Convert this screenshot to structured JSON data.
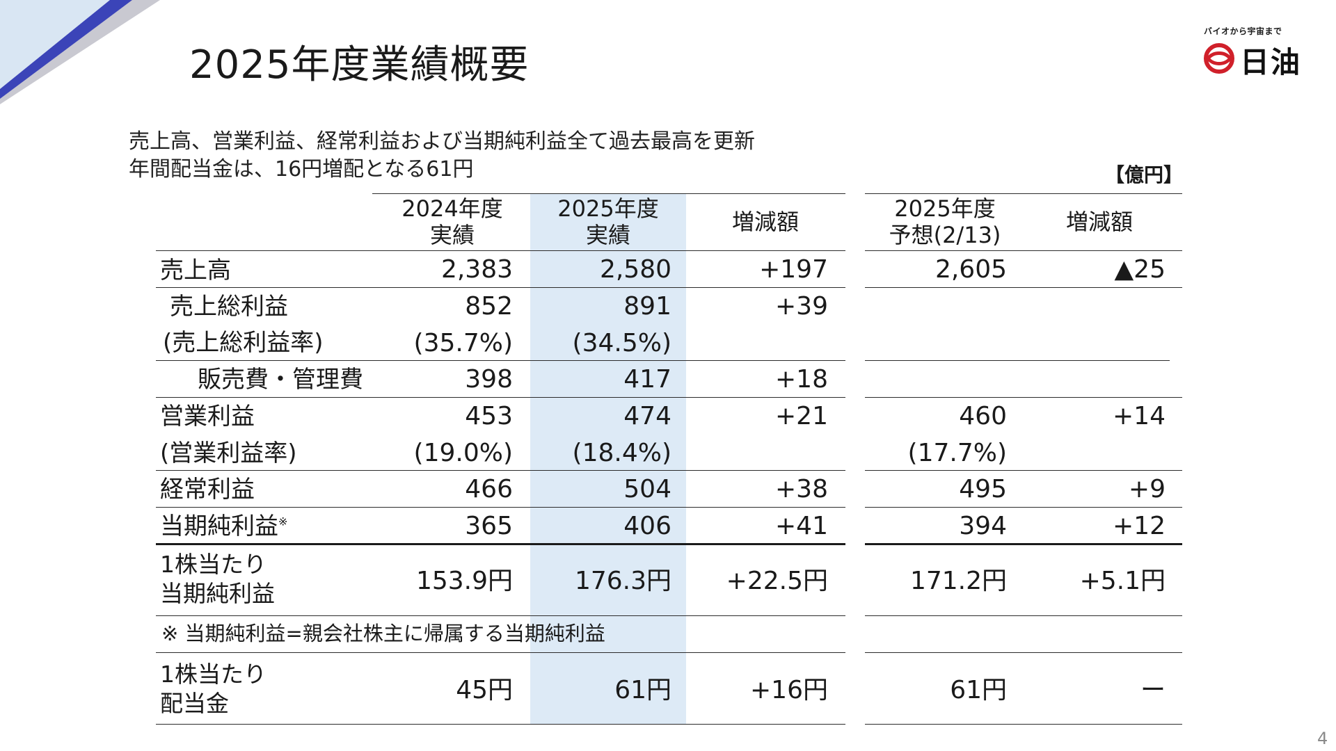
{
  "title": "2025年度業績概要",
  "logo": {
    "tagline": "バイオから宇宙まで",
    "name": "日油",
    "color": "#d0202a"
  },
  "subtitle": {
    "line1": "売上高、営業利益、経常利益および当期純利益全て過去最高を更新",
    "line2": "年間配当金は、16円増配となる61円"
  },
  "unit": "【億円】",
  "page_number": "4",
  "colors": {
    "highlight": "#ddeaf6",
    "corner_dark": "#3b44b8",
    "corner_light": "#d9e6f3"
  },
  "table": {
    "headers": {
      "fy2024_l1": "2024年度",
      "fy2024_l2": "実績",
      "fy2025_l1": "2025年度",
      "fy2025_l2": "実績",
      "change": "増減額",
      "forecast_l1": "2025年度",
      "forecast_l2": "予想(2/13)",
      "forecast_change": "増減額"
    },
    "rows": {
      "sales": {
        "label": "売上高",
        "fy2024": "2,383",
        "fy2025": "2,580",
        "change": "+197",
        "forecast": "2,605",
        "forecast_change": "▲25"
      },
      "gross_profit": {
        "label": "売上総利益",
        "fy2024": "852",
        "fy2025": "891",
        "change": "+39"
      },
      "gross_margin": {
        "label": "(売上総利益率)",
        "fy2024": "(35.7%)",
        "fy2025": "(34.5%)"
      },
      "sga": {
        "label": "販売費・管理費",
        "fy2024": "398",
        "fy2025": "417",
        "change": "+18"
      },
      "operating_profit": {
        "label": "営業利益",
        "fy2024": "453",
        "fy2025": "474",
        "change": "+21",
        "forecast": "460",
        "forecast_change": "+14"
      },
      "operating_margin": {
        "label": "(営業利益率)",
        "fy2024": "(19.0%)",
        "fy2025": "(18.4%)",
        "forecast": "(17.7%)"
      },
      "ordinary_profit": {
        "label": "経常利益",
        "fy2024": "466",
        "fy2025": "504",
        "change": "+38",
        "forecast": "495",
        "forecast_change": "+9"
      },
      "net_income": {
        "label": "当期純利益",
        "label_mark": "※",
        "fy2024": "365",
        "fy2025": "406",
        "change": "+41",
        "forecast": "394",
        "forecast_change": "+12"
      },
      "eps": {
        "label_l1": "1株当たり",
        "label_l2": "当期純利益",
        "fy2024": "153.9円",
        "fy2025": "176.3円",
        "change": "+22.5円",
        "forecast": "171.2円",
        "forecast_change": "+5.1円"
      },
      "dividend": {
        "label_l1": "1株当たり",
        "label_l2": "配当金",
        "fy2024": "45円",
        "fy2025": "61円",
        "change": "+16円",
        "forecast": "61円",
        "forecast_change": "ー"
      }
    },
    "footnote": "※ 当期純利益=親会社株主に帰属する当期純利益"
  }
}
